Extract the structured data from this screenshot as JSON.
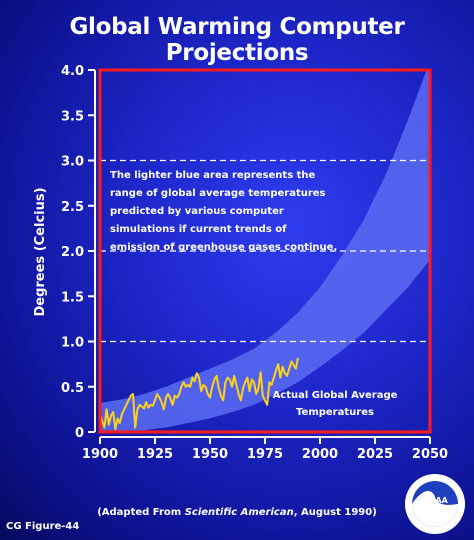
{
  "title": "Global Warming Computer Projections",
  "note_lines": [
    "The lighter blue area represents the",
    "range of global average temperatures",
    "predicted by various computer",
    "simulations if current trends of",
    "emission of greenhouse gases continue."
  ],
  "series_label_lines": [
    "Actual Global Average",
    "Temperatures"
  ],
  "source": {
    "prefix": "(Adapted From ",
    "italic": "Scientific American",
    "suffix": ", August 1990)"
  },
  "figure_id": "CG Figure-44",
  "logo_text": "NOAA",
  "colors": {
    "background": "#1d26c8",
    "projection_band": "#5a6cf2",
    "frame": "#ff1a1a",
    "observed_line": "#ffd21e",
    "gridline": "#ffffff"
  },
  "chart_data": {
    "type": "area",
    "title": "Global Warming Computer Projections",
    "ylabel": "Degrees (Celcius)",
    "xlabel": "",
    "xlim": [
      1900,
      2050
    ],
    "ylim": [
      0,
      4.0
    ],
    "x_ticks": [
      "1900",
      "1925",
      "1950",
      "1975",
      "2000",
      "2025",
      "2050"
    ],
    "y_ticks": [
      "0",
      "0.5",
      "1.0",
      "1.5",
      "2.0",
      "2.5",
      "3.0",
      "3.5",
      "4.0"
    ],
    "dashed_gridlines_y": [
      1.0,
      2.0,
      3.0
    ],
    "projection_band": {
      "x": [
        1900,
        1910,
        1920,
        1930,
        1940,
        1950,
        1960,
        1970,
        1980,
        1990,
        2000,
        2010,
        2020,
        2030,
        2040,
        2050
      ],
      "lower": [
        0.0,
        0.0,
        0.02,
        0.05,
        0.1,
        0.15,
        0.22,
        0.3,
        0.42,
        0.55,
        0.72,
        0.9,
        1.1,
        1.35,
        1.6,
        1.9
      ],
      "upper": [
        0.32,
        0.36,
        0.42,
        0.5,
        0.6,
        0.7,
        0.8,
        0.92,
        1.1,
        1.32,
        1.6,
        1.95,
        2.35,
        2.85,
        3.45,
        4.1
      ]
    },
    "series": [
      {
        "name": "Actual Global Average Temperatures",
        "x": [
          1900,
          1901,
          1902,
          1903,
          1904,
          1905,
          1906,
          1907,
          1908,
          1909,
          1910,
          1911,
          1912,
          1913,
          1914,
          1915,
          1916,
          1917,
          1918,
          1919,
          1920,
          1921,
          1922,
          1923,
          1924,
          1925,
          1926,
          1927,
          1928,
          1929,
          1930,
          1931,
          1932,
          1933,
          1934,
          1935,
          1936,
          1937,
          1938,
          1939,
          1940,
          1941,
          1942,
          1943,
          1944,
          1945,
          1946,
          1947,
          1948,
          1949,
          1950,
          1951,
          1952,
          1953,
          1954,
          1955,
          1956,
          1957,
          1958,
          1959,
          1960,
          1961,
          1962,
          1963,
          1964,
          1965,
          1966,
          1967,
          1968,
          1969,
          1970,
          1971,
          1972,
          1973,
          1974,
          1975,
          1976,
          1977,
          1978,
          1979,
          1980,
          1981,
          1982,
          1983,
          1984,
          1985,
          1986,
          1987,
          1988,
          1989,
          1990
        ],
        "values": [
          0.2,
          0.12,
          0.05,
          0.25,
          0.08,
          0.18,
          0.22,
          0.03,
          0.15,
          0.1,
          0.2,
          0.25,
          0.3,
          0.35,
          0.4,
          0.42,
          0.05,
          0.25,
          0.3,
          0.28,
          0.26,
          0.33,
          0.27,
          0.3,
          0.29,
          0.35,
          0.42,
          0.38,
          0.33,
          0.25,
          0.38,
          0.42,
          0.37,
          0.3,
          0.4,
          0.38,
          0.42,
          0.5,
          0.55,
          0.5,
          0.52,
          0.5,
          0.6,
          0.56,
          0.65,
          0.6,
          0.45,
          0.52,
          0.5,
          0.42,
          0.38,
          0.5,
          0.58,
          0.62,
          0.48,
          0.4,
          0.35,
          0.55,
          0.6,
          0.58,
          0.5,
          0.62,
          0.52,
          0.42,
          0.35,
          0.48,
          0.55,
          0.6,
          0.45,
          0.58,
          0.55,
          0.42,
          0.48,
          0.66,
          0.4,
          0.35,
          0.3,
          0.55,
          0.52,
          0.6,
          0.68,
          0.75,
          0.6,
          0.72,
          0.65,
          0.62,
          0.7,
          0.78,
          0.74,
          0.7,
          0.82
        ]
      }
    ],
    "grid": false,
    "legend": "none"
  }
}
